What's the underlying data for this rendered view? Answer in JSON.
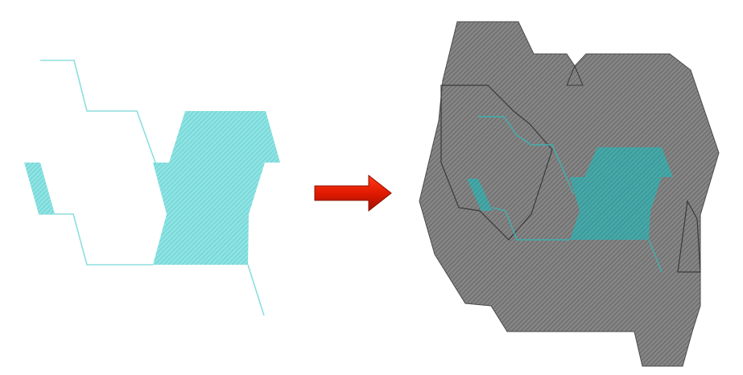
{
  "colors": {
    "background": "#ffffff",
    "teal": "#6fd6d6",
    "teal_hatch": "#4fc3c3",
    "teal_line": "#7fd9d9",
    "gray_fill": "#7b7b7b",
    "gray_hatch": "#5c5c5c",
    "gray_outline": "#3a3a3a",
    "dark_teal": "#3a9b9b",
    "arrow_red": "#e01a00",
    "arrow_dark": "#8a1000"
  },
  "icons": {
    "arrow": "right-arrow-icon"
  }
}
